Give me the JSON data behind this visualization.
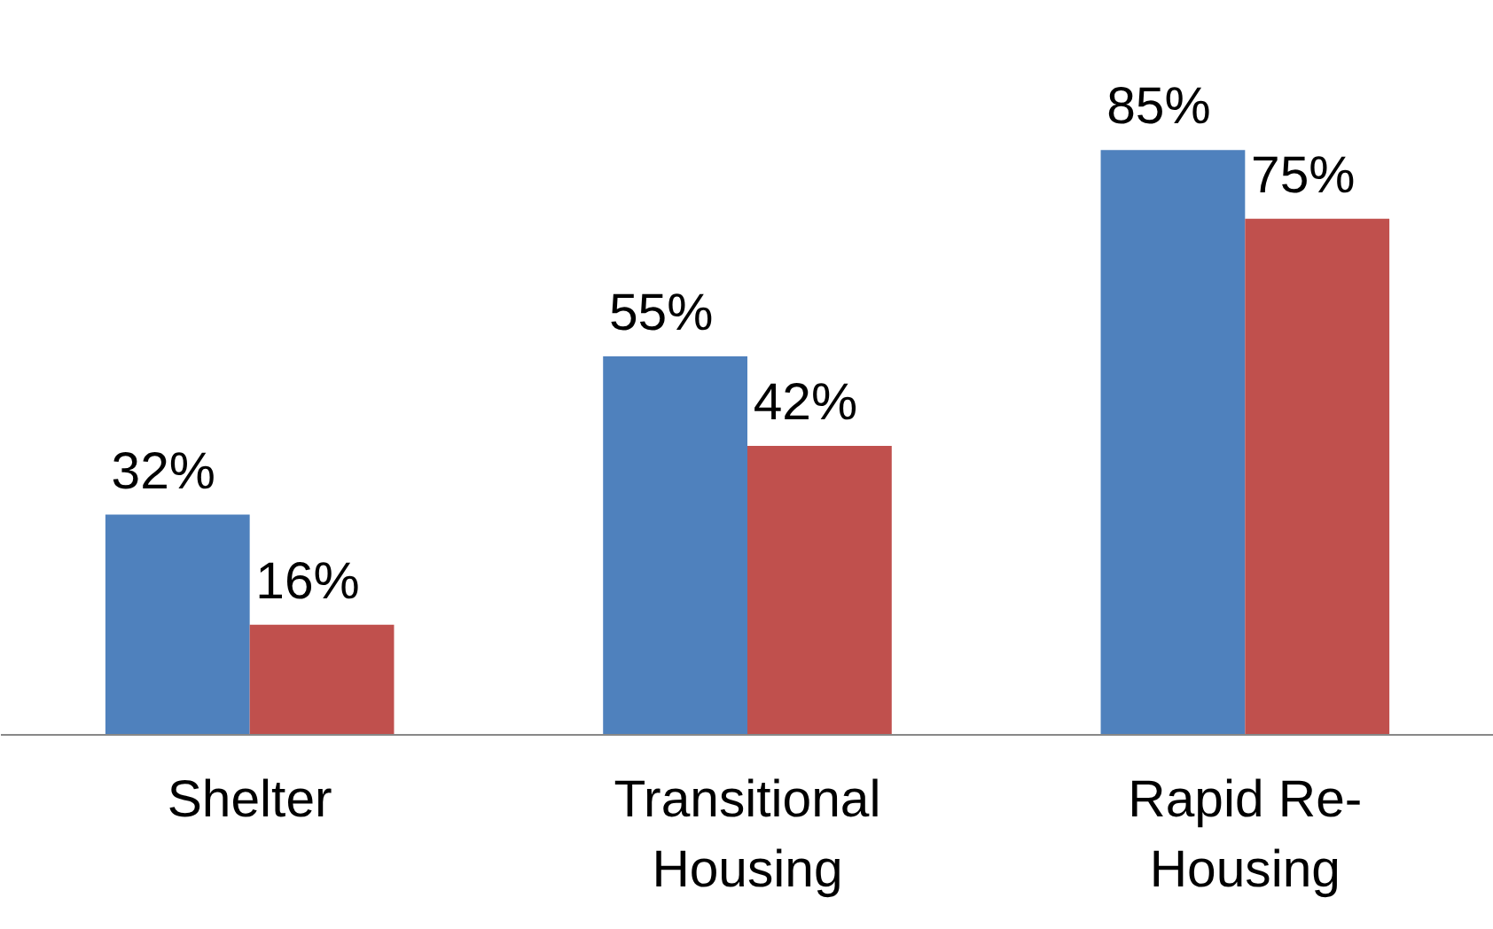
{
  "chart_data": {
    "type": "bar",
    "categories": [
      "Shelter",
      "Transitional Housing",
      "Rapid Re-Housing"
    ],
    "series": [
      {
        "color": "#4f81bd",
        "values": [
          32,
          55,
          85
        ],
        "value_labels": [
          "32%",
          "55%",
          "85%"
        ]
      },
      {
        "color": "#c0504d",
        "values": [
          16,
          42,
          75
        ],
        "value_labels": [
          "16%",
          "42%",
          "75%"
        ]
      }
    ],
    "grid": false
  }
}
